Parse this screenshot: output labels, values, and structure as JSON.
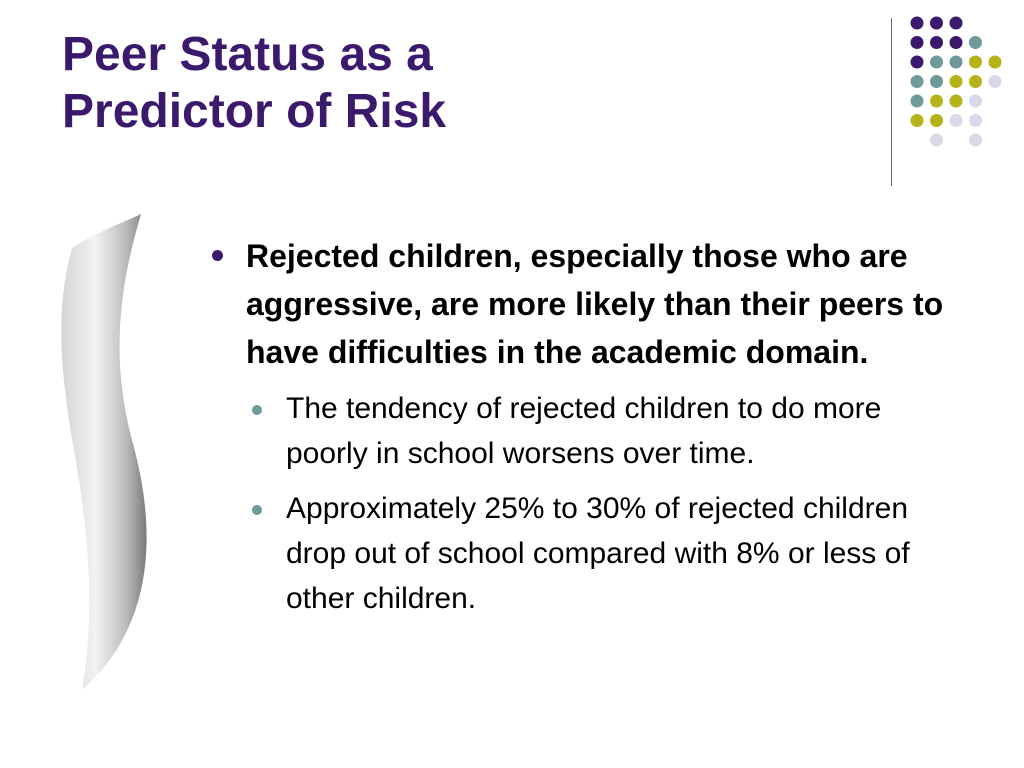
{
  "slide": {
    "title_lines": [
      "Peer Status as a",
      "Predictor of Risk"
    ],
    "main_bullet": "Rejected children, especially those who are aggressive, are more likely than their peers to have difficulties in the academic domain.",
    "sub_bullets": [
      "The tendency of rejected children to do more poorly in school worsens over time.",
      "Approximately 25% to 30% of rejected children drop out of school compared with 8% or less of other children."
    ]
  },
  "colors": {
    "purple": "#3b1a6e",
    "teal": "#6e9a9a",
    "olive": "#b5b21a",
    "lavender": "#d8d8e8",
    "divider": "#6b6b6b"
  },
  "dot_grid": [
    [
      "purple",
      "purple",
      "purple",
      "",
      ""
    ],
    [
      "purple",
      "purple",
      "purple",
      "teal",
      ""
    ],
    [
      "purple",
      "teal",
      "teal",
      "olive",
      "olive"
    ],
    [
      "teal",
      "teal",
      "olive",
      "olive",
      "lavender"
    ],
    [
      "teal",
      "olive",
      "olive",
      "lavender",
      ""
    ],
    [
      "olive",
      "olive",
      "lavender",
      "lavender",
      ""
    ],
    [
      "",
      "lavender",
      "",
      "lavender",
      ""
    ]
  ]
}
